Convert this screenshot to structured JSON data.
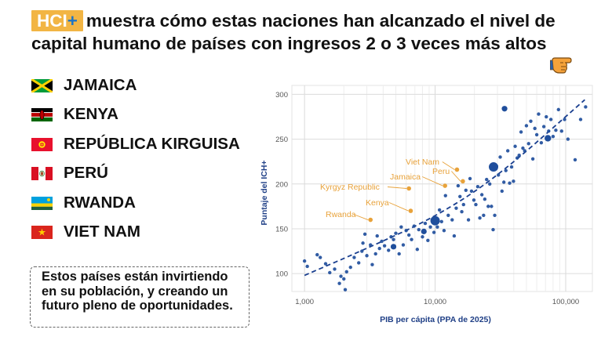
{
  "header": {
    "badge_main": "HCI",
    "badge_plus": "+",
    "title": "muestra cómo estas naciones han alcanzado el nivel de capital humano de países con ingresos 2 o 3 veces más altos"
  },
  "countries": [
    {
      "name": "JAMAICA",
      "flag": "jamaica-flag-icon"
    },
    {
      "name": "KENYA",
      "flag": "kenya-flag-icon"
    },
    {
      "name": "REPÚBLICA KIRGUISA",
      "flag": "kyrgyz-flag-icon"
    },
    {
      "name": "PERÚ",
      "flag": "peru-flag-icon"
    },
    {
      "name": "RWANDA",
      "flag": "rwanda-flag-icon"
    },
    {
      "name": "VIET NAM",
      "flag": "vietnam-flag-icon"
    }
  ],
  "callout": {
    "text": "Estos países están invirtiendo en su población, y creando un futuro pleno de oportunidades."
  },
  "colors": {
    "badge": "#f2b544",
    "badge_plus": "#1a74c9",
    "points": "#1f4e9c",
    "highlight": "#e8a23a"
  },
  "chart_data": {
    "type": "scatter",
    "xlabel": "PIB per cápita (PPA de 2025)",
    "ylabel": "Puntaje del ICH+",
    "x_scale": "log",
    "xlim": [
      800,
      160000
    ],
    "ylim": [
      80,
      310
    ],
    "xticks": [
      1000,
      10000,
      100000
    ],
    "xtick_labels": [
      "1,000",
      "10,000",
      "100,000"
    ],
    "yticks": [
      100,
      150,
      200,
      250,
      300
    ],
    "ytick_labels": [
      "100",
      "150",
      "200",
      "250",
      "300"
    ],
    "grid": true,
    "trendline": {
      "style": "dashed",
      "points": [
        [
          1000,
          98
        ],
        [
          3000,
          128
        ],
        [
          10000,
          163
        ],
        [
          30000,
          208
        ],
        [
          140000,
          294
        ]
      ]
    },
    "labeled_points": [
      {
        "label": "Viet Nam",
        "x": 14700,
        "y": 216
      },
      {
        "label": "Peru",
        "x": 16300,
        "y": 203
      },
      {
        "label": "Jamaica",
        "x": 11900,
        "y": 198
      },
      {
        "label": "Kyrgyz Republic",
        "x": 6300,
        "y": 195
      },
      {
        "label": "Kenya",
        "x": 6500,
        "y": 170
      },
      {
        "label": "Rwanda",
        "x": 3200,
        "y": 160
      }
    ],
    "highlight_points": [
      {
        "x": 28000,
        "y": 219,
        "size": 6.0
      },
      {
        "x": 10000,
        "y": 159,
        "size": 6.0
      },
      {
        "x": 73000,
        "y": 251,
        "size": 4.2
      },
      {
        "x": 4800,
        "y": 130,
        "size": 3.6
      },
      {
        "x": 8200,
        "y": 147,
        "size": 3.6
      },
      {
        "x": 34000,
        "y": 284,
        "size": 3.6
      }
    ],
    "points": [
      [
        1000,
        114
      ],
      [
        1050,
        108
      ],
      [
        1250,
        121
      ],
      [
        1320,
        118
      ],
      [
        1450,
        111
      ],
      [
        1560,
        101
      ],
      [
        1700,
        105
      ],
      [
        1850,
        89
      ],
      [
        1900,
        97
      ],
      [
        2000,
        94
      ],
      [
        2050,
        82
      ],
      [
        2100,
        102
      ],
      [
        2250,
        107
      ],
      [
        2400,
        118
      ],
      [
        2600,
        112
      ],
      [
        2750,
        125
      ],
      [
        2800,
        134
      ],
      [
        2900,
        144
      ],
      [
        3000,
        120
      ],
      [
        3200,
        132
      ],
      [
        3300,
        110
      ],
      [
        3500,
        122
      ],
      [
        3600,
        142
      ],
      [
        3750,
        128
      ],
      [
        3900,
        136
      ],
      [
        4100,
        131
      ],
      [
        4400,
        126
      ],
      [
        4600,
        141
      ],
      [
        4800,
        138
      ],
      [
        5000,
        145
      ],
      [
        5300,
        122
      ],
      [
        5500,
        152
      ],
      [
        5700,
        132
      ],
      [
        6000,
        148
      ],
      [
        6300,
        143
      ],
      [
        6600,
        138
      ],
      [
        6900,
        153
      ],
      [
        7300,
        127
      ],
      [
        7500,
        149
      ],
      [
        8000,
        141
      ],
      [
        8400,
        156
      ],
      [
        8800,
        137
      ],
      [
        9200,
        152
      ],
      [
        9800,
        146
      ],
      [
        10400,
        152
      ],
      [
        10800,
        171
      ],
      [
        11200,
        158
      ],
      [
        11700,
        148
      ],
      [
        12000,
        187
      ],
      [
        12600,
        165
      ],
      [
        13500,
        160
      ],
      [
        14000,
        142
      ],
      [
        14500,
        173
      ],
      [
        15000,
        198
      ],
      [
        15500,
        186
      ],
      [
        16000,
        169
      ],
      [
        16500,
        177
      ],
      [
        17200,
        193
      ],
      [
        18000,
        160
      ],
      [
        18500,
        206
      ],
      [
        19000,
        192
      ],
      [
        19800,
        182
      ],
      [
        20500,
        177
      ],
      [
        21200,
        197
      ],
      [
        22000,
        162
      ],
      [
        22800,
        188
      ],
      [
        23500,
        165
      ],
      [
        24000,
        183
      ],
      [
        24800,
        205
      ],
      [
        25500,
        175
      ],
      [
        26200,
        200
      ],
      [
        27000,
        175
      ],
      [
        27800,
        149
      ],
      [
        28600,
        165
      ],
      [
        29500,
        220
      ],
      [
        30500,
        210
      ],
      [
        31500,
        230
      ],
      [
        32500,
        192
      ],
      [
        33600,
        202
      ],
      [
        34800,
        215
      ],
      [
        36000,
        237
      ],
      [
        37200,
        201
      ],
      [
        38500,
        219
      ],
      [
        39800,
        203
      ],
      [
        41000,
        242
      ],
      [
        42500,
        229
      ],
      [
        44000,
        232
      ],
      [
        45500,
        258
      ],
      [
        47000,
        240
      ],
      [
        48500,
        237
      ],
      [
        50000,
        265
      ],
      [
        52000,
        245
      ],
      [
        54000,
        270
      ],
      [
        56000,
        228
      ],
      [
        58000,
        262
      ],
      [
        60000,
        255
      ],
      [
        62000,
        278
      ],
      [
        65000,
        246
      ],
      [
        68000,
        264
      ],
      [
        71000,
        275
      ],
      [
        74000,
        259
      ],
      [
        77000,
        272
      ],
      [
        80000,
        253
      ],
      [
        84000,
        260
      ],
      [
        88000,
        283
      ],
      [
        93000,
        259
      ],
      [
        98000,
        272
      ],
      [
        104000,
        250
      ],
      [
        118000,
        227
      ],
      [
        130000,
        272
      ],
      [
        142000,
        286
      ]
    ]
  }
}
